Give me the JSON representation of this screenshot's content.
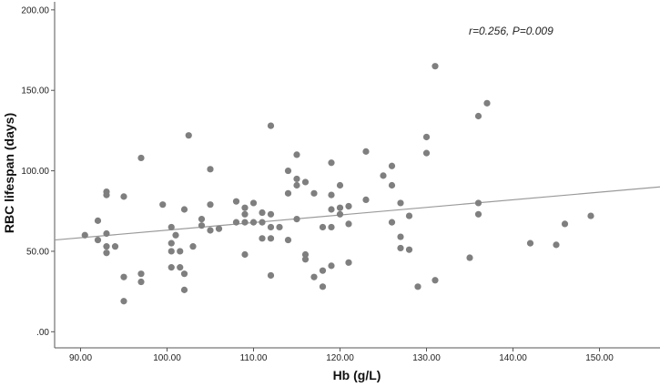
{
  "chart_data": {
    "type": "scatter",
    "title": "",
    "xlabel": "Hb (g/L)",
    "ylabel": "RBC lifespan (days)",
    "xlim": [
      87,
      157
    ],
    "ylim": [
      -10,
      205
    ],
    "xticks": [
      90,
      100,
      110,
      120,
      130,
      140,
      150
    ],
    "xtick_labels": [
      "90.00",
      "100.00",
      "110.00",
      "120.00",
      "130.00",
      "140.00",
      "150.00"
    ],
    "yticks": [
      0,
      50,
      100,
      150,
      200
    ],
    "ytick_labels": [
      ".00",
      "50.00",
      "100.00",
      "150.00",
      "200.00"
    ],
    "annotation": "r=0.256, P=0.009",
    "point_color": "#7f7f7f",
    "line_color": "#9a9a9a",
    "fit_line": {
      "x": [
        87,
        157
      ],
      "y": [
        57,
        90
      ]
    },
    "points": [
      {
        "x": 90.5,
        "y": 60
      },
      {
        "x": 92,
        "y": 69
      },
      {
        "x": 92,
        "y": 57
      },
      {
        "x": 93,
        "y": 87
      },
      {
        "x": 93,
        "y": 85
      },
      {
        "x": 93,
        "y": 61
      },
      {
        "x": 93,
        "y": 53
      },
      {
        "x": 93,
        "y": 49
      },
      {
        "x": 94,
        "y": 53
      },
      {
        "x": 95,
        "y": 84
      },
      {
        "x": 95,
        "y": 34
      },
      {
        "x": 95,
        "y": 19
      },
      {
        "x": 97,
        "y": 108
      },
      {
        "x": 97,
        "y": 36
      },
      {
        "x": 97,
        "y": 31
      },
      {
        "x": 99.5,
        "y": 79
      },
      {
        "x": 100.5,
        "y": 65
      },
      {
        "x": 100.5,
        "y": 55
      },
      {
        "x": 100.5,
        "y": 50
      },
      {
        "x": 100.5,
        "y": 40
      },
      {
        "x": 101,
        "y": 60
      },
      {
        "x": 101.5,
        "y": 50
      },
      {
        "x": 101.5,
        "y": 40
      },
      {
        "x": 102,
        "y": 76
      },
      {
        "x": 102,
        "y": 36
      },
      {
        "x": 102,
        "y": 26
      },
      {
        "x": 102.5,
        "y": 122
      },
      {
        "x": 103,
        "y": 53
      },
      {
        "x": 104,
        "y": 70
      },
      {
        "x": 104,
        "y": 66
      },
      {
        "x": 105,
        "y": 101
      },
      {
        "x": 105,
        "y": 79
      },
      {
        "x": 105,
        "y": 63
      },
      {
        "x": 106,
        "y": 64
      },
      {
        "x": 108,
        "y": 81
      },
      {
        "x": 108,
        "y": 68
      },
      {
        "x": 109,
        "y": 77
      },
      {
        "x": 109,
        "y": 73
      },
      {
        "x": 109,
        "y": 68
      },
      {
        "x": 109,
        "y": 48
      },
      {
        "x": 110,
        "y": 80
      },
      {
        "x": 110,
        "y": 68
      },
      {
        "x": 111,
        "y": 74
      },
      {
        "x": 111,
        "y": 68
      },
      {
        "x": 111,
        "y": 58
      },
      {
        "x": 112,
        "y": 128
      },
      {
        "x": 112,
        "y": 73
      },
      {
        "x": 112,
        "y": 65
      },
      {
        "x": 112,
        "y": 58
      },
      {
        "x": 112,
        "y": 35
      },
      {
        "x": 113,
        "y": 65
      },
      {
        "x": 114,
        "y": 100
      },
      {
        "x": 114,
        "y": 86
      },
      {
        "x": 114,
        "y": 57
      },
      {
        "x": 115,
        "y": 110
      },
      {
        "x": 115,
        "y": 95
      },
      {
        "x": 115,
        "y": 91
      },
      {
        "x": 115,
        "y": 70
      },
      {
        "x": 116,
        "y": 93
      },
      {
        "x": 116,
        "y": 48
      },
      {
        "x": 116,
        "y": 45
      },
      {
        "x": 117,
        "y": 86
      },
      {
        "x": 117,
        "y": 34
      },
      {
        "x": 118,
        "y": 65
      },
      {
        "x": 118,
        "y": 38
      },
      {
        "x": 118,
        "y": 28
      },
      {
        "x": 119,
        "y": 105
      },
      {
        "x": 119,
        "y": 85
      },
      {
        "x": 119,
        "y": 76
      },
      {
        "x": 119,
        "y": 65
      },
      {
        "x": 119,
        "y": 41
      },
      {
        "x": 120,
        "y": 91
      },
      {
        "x": 120,
        "y": 77
      },
      {
        "x": 120,
        "y": 73
      },
      {
        "x": 121,
        "y": 78
      },
      {
        "x": 121,
        "y": 67
      },
      {
        "x": 121,
        "y": 43
      },
      {
        "x": 123,
        "y": 112
      },
      {
        "x": 123,
        "y": 82
      },
      {
        "x": 125,
        "y": 97
      },
      {
        "x": 126,
        "y": 103
      },
      {
        "x": 126,
        "y": 91
      },
      {
        "x": 126,
        "y": 68
      },
      {
        "x": 127,
        "y": 80
      },
      {
        "x": 127,
        "y": 59
      },
      {
        "x": 127,
        "y": 52
      },
      {
        "x": 128,
        "y": 72
      },
      {
        "x": 128,
        "y": 51
      },
      {
        "x": 129,
        "y": 28
      },
      {
        "x": 130,
        "y": 121
      },
      {
        "x": 130,
        "y": 111
      },
      {
        "x": 131,
        "y": 165
      },
      {
        "x": 131,
        "y": 32
      },
      {
        "x": 135,
        "y": 46
      },
      {
        "x": 136,
        "y": 134
      },
      {
        "x": 136,
        "y": 80
      },
      {
        "x": 136,
        "y": 73
      },
      {
        "x": 137,
        "y": 142
      },
      {
        "x": 142,
        "y": 55
      },
      {
        "x": 145,
        "y": 54
      },
      {
        "x": 146,
        "y": 67
      },
      {
        "x": 149,
        "y": 72
      }
    ]
  }
}
